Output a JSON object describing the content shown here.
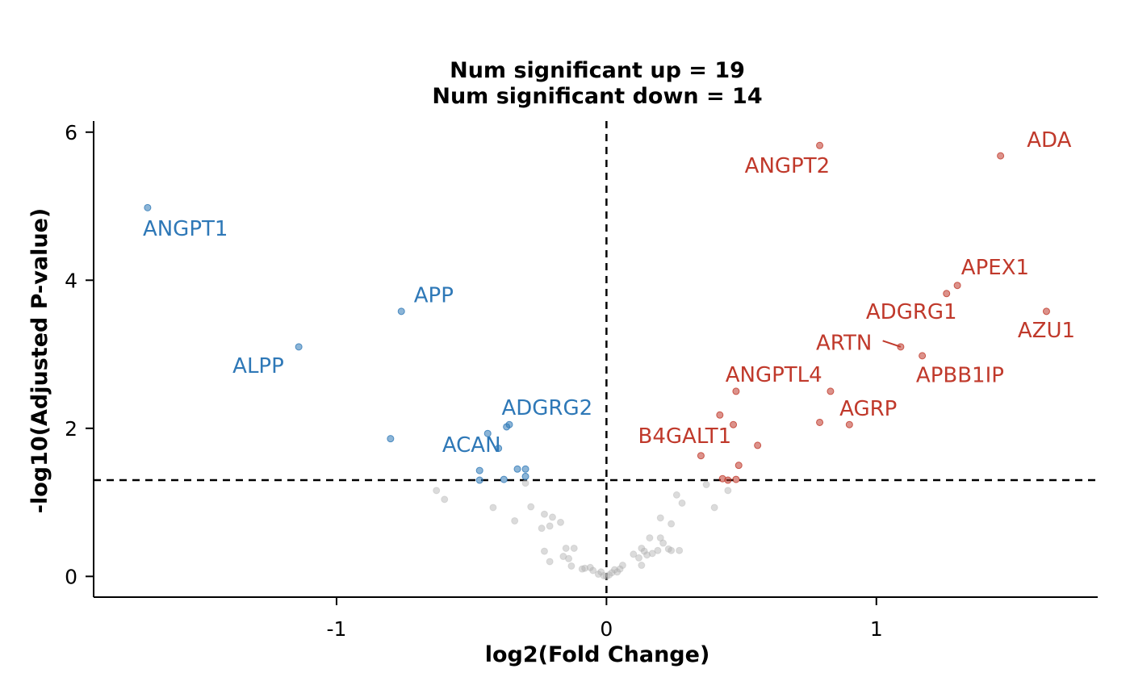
{
  "chart_data": {
    "type": "scatter",
    "title": [
      "Num significant up = 19",
      "Num significant down = 14"
    ],
    "xlabel": "log2(Fold Change)",
    "ylabel": "-log10(Adjusted P-value)",
    "xlim": [
      -1.9,
      1.82
    ],
    "ylim": [
      -0.28,
      6.15
    ],
    "x_ticks": [
      -1,
      0,
      1
    ],
    "y_ticks": [
      0,
      2,
      4,
      6
    ],
    "x_tick_labels": [
      "-1",
      "0",
      "1"
    ],
    "y_tick_labels": [
      "0",
      "2",
      "4",
      "6"
    ],
    "thresholds": {
      "x": 0,
      "y": 1.3
    },
    "colors": {
      "up": "#c0392b",
      "down": "#2e78b7",
      "ns": "#b0b0b0"
    },
    "series": [
      {
        "status": "up",
        "points": [
          {
            "x": 1.46,
            "y": 5.68,
            "label": "ADA"
          },
          {
            "x": 0.79,
            "y": 5.82,
            "label": "ANGPT2"
          },
          {
            "x": 1.3,
            "y": 3.93,
            "label": "APEX1"
          },
          {
            "x": 1.26,
            "y": 3.82,
            "label": "ADGRG1"
          },
          {
            "x": 1.63,
            "y": 3.58,
            "label": "AZU1"
          },
          {
            "x": 1.09,
            "y": 3.1,
            "label": "ARTN"
          },
          {
            "x": 1.17,
            "y": 2.98,
            "label": "APBB1IP"
          },
          {
            "x": 0.48,
            "y": 2.5,
            "label": "ANGPTL4"
          },
          {
            "x": 0.83,
            "y": 2.5
          },
          {
            "x": 0.42,
            "y": 2.18
          },
          {
            "x": 0.79,
            "y": 2.08
          },
          {
            "x": 0.9,
            "y": 2.05,
            "label": "AGRP"
          },
          {
            "x": 0.47,
            "y": 2.05,
            "label": "B4GALT1"
          },
          {
            "x": 0.56,
            "y": 1.77
          },
          {
            "x": 0.35,
            "y": 1.63
          },
          {
            "x": 0.49,
            "y": 1.5
          },
          {
            "x": 0.43,
            "y": 1.32
          },
          {
            "x": 0.48,
            "y": 1.31
          },
          {
            "x": 0.45,
            "y": 1.3
          }
        ]
      },
      {
        "status": "down",
        "points": [
          {
            "x": -1.7,
            "y": 4.98,
            "label": "ANGPT1"
          },
          {
            "x": -0.76,
            "y": 3.58,
            "label": "APP"
          },
          {
            "x": -1.14,
            "y": 3.1,
            "label": "ALPP"
          },
          {
            "x": -0.8,
            "y": 1.86
          },
          {
            "x": -0.36,
            "y": 2.05,
            "label": "ADGRG2"
          },
          {
            "x": -0.37,
            "y": 2.02
          },
          {
            "x": -0.44,
            "y": 1.93,
            "label": "ACAN"
          },
          {
            "x": -0.4,
            "y": 1.73
          },
          {
            "x": -0.33,
            "y": 1.45
          },
          {
            "x": -0.3,
            "y": 1.45
          },
          {
            "x": -0.47,
            "y": 1.43
          },
          {
            "x": -0.3,
            "y": 1.35
          },
          {
            "x": -0.47,
            "y": 1.3
          },
          {
            "x": -0.38,
            "y": 1.31
          }
        ]
      },
      {
        "status": "ns",
        "points": [
          {
            "x": -0.63,
            "y": 1.16
          },
          {
            "x": -0.6,
            "y": 1.04
          },
          {
            "x": -0.42,
            "y": 0.93
          },
          {
            "x": -0.3,
            "y": 1.26
          },
          {
            "x": -0.28,
            "y": 0.94
          },
          {
            "x": -0.34,
            "y": 0.75
          },
          {
            "x": -0.23,
            "y": 0.84
          },
          {
            "x": -0.2,
            "y": 0.8
          },
          {
            "x": -0.17,
            "y": 0.73
          },
          {
            "x": -0.21,
            "y": 0.68
          },
          {
            "x": -0.24,
            "y": 0.65
          },
          {
            "x": -0.23,
            "y": 0.34
          },
          {
            "x": -0.15,
            "y": 0.38
          },
          {
            "x": -0.12,
            "y": 0.38
          },
          {
            "x": -0.21,
            "y": 0.2
          },
          {
            "x": -0.16,
            "y": 0.27
          },
          {
            "x": -0.14,
            "y": 0.24
          },
          {
            "x": -0.13,
            "y": 0.14
          },
          {
            "x": -0.08,
            "y": 0.11
          },
          {
            "x": -0.06,
            "y": 0.12
          },
          {
            "x": -0.05,
            "y": 0.08
          },
          {
            "x": -0.03,
            "y": 0.03
          },
          {
            "x": -0.02,
            "y": 0.06
          },
          {
            "x": -0.01,
            "y": 0.01
          },
          {
            "x": 0.0,
            "y": 0.0
          },
          {
            "x": 0.01,
            "y": 0.02
          },
          {
            "x": 0.02,
            "y": 0.05
          },
          {
            "x": 0.03,
            "y": 0.09
          },
          {
            "x": 0.04,
            "y": 0.06
          },
          {
            "x": 0.05,
            "y": 0.1
          },
          {
            "x": 0.06,
            "y": 0.15
          },
          {
            "x": 0.1,
            "y": 0.3
          },
          {
            "x": 0.12,
            "y": 0.25
          },
          {
            "x": 0.13,
            "y": 0.38
          },
          {
            "x": 0.14,
            "y": 0.34
          },
          {
            "x": 0.15,
            "y": 0.29
          },
          {
            "x": 0.16,
            "y": 0.52
          },
          {
            "x": 0.17,
            "y": 0.31
          },
          {
            "x": 0.19,
            "y": 0.35
          },
          {
            "x": 0.2,
            "y": 0.52
          },
          {
            "x": 0.21,
            "y": 0.45
          },
          {
            "x": 0.23,
            "y": 0.37
          },
          {
            "x": 0.24,
            "y": 0.35
          },
          {
            "x": 0.27,
            "y": 0.35
          },
          {
            "x": 0.2,
            "y": 0.79
          },
          {
            "x": 0.24,
            "y": 0.71
          },
          {
            "x": 0.26,
            "y": 1.1
          },
          {
            "x": 0.28,
            "y": 0.99
          },
          {
            "x": 0.37,
            "y": 1.24
          },
          {
            "x": 0.4,
            "y": 0.93
          },
          {
            "x": 0.45,
            "y": 1.16
          },
          {
            "x": 0.13,
            "y": 0.15
          },
          {
            "x": -0.09,
            "y": 0.1
          }
        ]
      }
    ],
    "annotations": [
      {
        "text": "ADA",
        "x": 1.64,
        "y": 5.9,
        "status": "up"
      },
      {
        "text": "ANGPT2",
        "x": 0.67,
        "y": 5.55,
        "status": "up"
      },
      {
        "text": "APEX1",
        "x": 1.44,
        "y": 4.18,
        "status": "up"
      },
      {
        "text": "ADGRG1",
        "x": 1.13,
        "y": 3.58,
        "status": "up"
      },
      {
        "text": "AZU1",
        "x": 1.63,
        "y": 3.33,
        "status": "up"
      },
      {
        "text": "ARTN",
        "x": 0.88,
        "y": 3.16,
        "status": "up",
        "leader_to": [
          1.09,
          3.1
        ]
      },
      {
        "text": "APBB1IP",
        "x": 1.31,
        "y": 2.72,
        "status": "up"
      },
      {
        "text": "ANGPTL4",
        "x": 0.62,
        "y": 2.73,
        "status": "up"
      },
      {
        "text": "AGRP",
        "x": 0.97,
        "y": 2.27,
        "status": "up"
      },
      {
        "text": "B4GALT1",
        "x": 0.29,
        "y": 1.9,
        "status": "up"
      },
      {
        "text": "ANGPT1",
        "x": -1.56,
        "y": 4.7,
        "status": "down"
      },
      {
        "text": "APP",
        "x": -0.64,
        "y": 3.8,
        "status": "down"
      },
      {
        "text": "ALPP",
        "x": -1.29,
        "y": 2.85,
        "status": "down"
      },
      {
        "text": "ADGRG2",
        "x": -0.22,
        "y": 2.28,
        "status": "down"
      },
      {
        "text": "ACAN",
        "x": -0.5,
        "y": 1.78,
        "status": "down"
      }
    ]
  }
}
